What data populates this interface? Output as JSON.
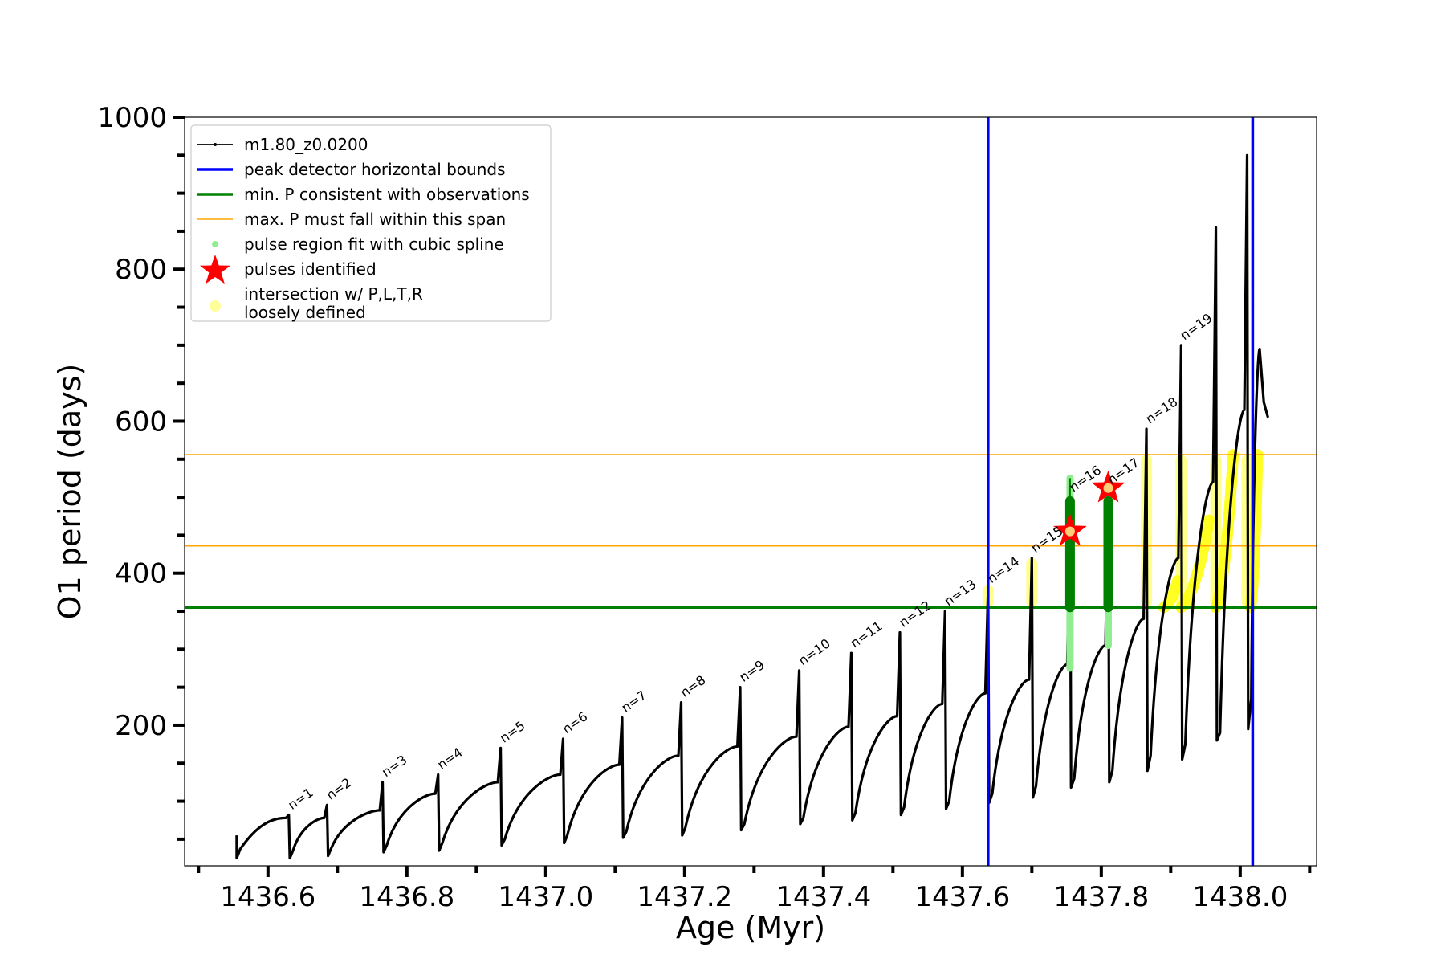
{
  "chart_data": {
    "type": "line",
    "title": "",
    "xlabel": "Age (Myr)",
    "ylabel": "O1 period (days)",
    "xlim": [
      1436.48,
      1438.11
    ],
    "ylim": [
      15,
      1000
    ],
    "x_ticks": [
      1436.6,
      1436.8,
      1437.0,
      1437.2,
      1437.4,
      1437.6,
      1437.8,
      1438.0
    ],
    "x_tick_labels": [
      "1436.6",
      "1436.8",
      "1437.0",
      "1437.2",
      "1437.4",
      "1437.6",
      "1437.8",
      "1438.0"
    ],
    "y_ticks": [
      200,
      400,
      600,
      800,
      1000
    ],
    "y_tick_labels": [
      "200",
      "400",
      "600",
      "800",
      "1000"
    ],
    "grid": false,
    "legend": {
      "position": "top-left",
      "entries": [
        {
          "label": "m1.80_z0.0200",
          "style": "line-marker",
          "color": "#000000"
        },
        {
          "label": "peak detector horizontal bounds",
          "style": "line",
          "color": "#0000ff"
        },
        {
          "label": "min. P consistent with observations",
          "style": "line",
          "color": "#008000"
        },
        {
          "label": "max. P must fall within this span",
          "style": "line",
          "color": "#ffa500"
        },
        {
          "label": "pulse region fit with cubic spline",
          "style": "dot",
          "color": "#90ee90"
        },
        {
          "label": "pulses identified",
          "style": "star",
          "color": "#ff0000"
        },
        {
          "label": "intersection w/ P,L,T,R",
          "label2": "loosely defined",
          "style": "dot",
          "color": "#ffff99"
        }
      ]
    },
    "vertical_lines": [
      {
        "x": 1437.637,
        "color": "#0000ff"
      },
      {
        "x": 1438.018,
        "color": "#0000ff"
      }
    ],
    "horizontal_lines": [
      {
        "y": 355,
        "color": "#008000"
      },
      {
        "y": 436,
        "color": "#ffa500"
      },
      {
        "y": 556,
        "color": "#ffa500"
      }
    ],
    "pulses": [
      {
        "label": "n=1",
        "x": 1436.63,
        "peak": 82,
        "floor": 25,
        "cycle_min": 35,
        "cycle_end": 78
      },
      {
        "label": "n=2",
        "x": 1436.685,
        "peak": 95,
        "floor": 28,
        "cycle_min": 38,
        "cycle_end": 88
      },
      {
        "label": "n=3",
        "x": 1436.765,
        "peak": 125,
        "floor": 33,
        "cycle_min": 42,
        "cycle_end": 110
      },
      {
        "label": "n=4",
        "x": 1436.845,
        "peak": 135,
        "floor": 35,
        "cycle_min": 45,
        "cycle_end": 125
      },
      {
        "label": "n=5",
        "x": 1436.935,
        "peak": 170,
        "floor": 42,
        "cycle_min": 50,
        "cycle_end": 135
      },
      {
        "label": "n=6",
        "x": 1437.025,
        "peak": 182,
        "floor": 45,
        "cycle_min": 55,
        "cycle_end": 148
      },
      {
        "label": "n=7",
        "x": 1437.11,
        "peak": 210,
        "floor": 52,
        "cycle_min": 60,
        "cycle_end": 160
      },
      {
        "label": "n=8",
        "x": 1437.195,
        "peak": 230,
        "floor": 55,
        "cycle_min": 65,
        "cycle_end": 172
      },
      {
        "label": "n=9",
        "x": 1437.28,
        "peak": 250,
        "floor": 62,
        "cycle_min": 70,
        "cycle_end": 185
      },
      {
        "label": "n=10",
        "x": 1437.365,
        "peak": 272,
        "floor": 70,
        "cycle_min": 78,
        "cycle_end": 198
      },
      {
        "label": "n=11",
        "x": 1437.44,
        "peak": 295,
        "floor": 75,
        "cycle_min": 85,
        "cycle_end": 212
      },
      {
        "label": "n=12",
        "x": 1437.51,
        "peak": 322,
        "floor": 82,
        "cycle_min": 92,
        "cycle_end": 228
      },
      {
        "label": "n=13",
        "x": 1437.575,
        "peak": 350,
        "floor": 90,
        "cycle_min": 100,
        "cycle_end": 242
      },
      {
        "label": "n=14",
        "x": 1437.637,
        "peak": 380,
        "floor": 98,
        "cycle_min": 110,
        "cycle_end": 260
      },
      {
        "label": "n=15",
        "x": 1437.7,
        "peak": 420,
        "floor": 105,
        "cycle_min": 120,
        "cycle_end": 280
      },
      {
        "label": "n=16",
        "x": 1437.755,
        "peak": 500,
        "floor": 118,
        "cycle_min": 130,
        "cycle_end": 305
      },
      {
        "label": "n=17",
        "x": 1437.81,
        "peak": 510,
        "floor": 125,
        "cycle_min": 140,
        "cycle_end": 340
      },
      {
        "label": "n=18",
        "x": 1437.865,
        "peak": 590,
        "floor": 140,
        "cycle_min": 160,
        "cycle_end": 420
      },
      {
        "label": "n=19",
        "x": 1437.915,
        "peak": 700,
        "floor": 155,
        "cycle_min": 175,
        "cycle_end": 520
      },
      {
        "label": "",
        "x": 1437.965,
        "peak": 855,
        "floor": 180,
        "cycle_min": 190,
        "cycle_end": 615
      },
      {
        "label": "",
        "x": 1438.01,
        "peak": 950,
        "floor": 195,
        "cycle_min": 235,
        "cycle_end": 695
      }
    ],
    "track_start": {
      "x": 1436.555,
      "y": 25
    },
    "track_end": {
      "x": 1438.04,
      "y": 605
    },
    "pulses_identified": [
      {
        "x": 1437.755,
        "y": 455
      },
      {
        "x": 1437.81,
        "y": 512
      }
    ],
    "spline_fit_regions": [
      {
        "x": 1437.755,
        "y_min": 275,
        "y_max": 525,
        "dense_min": 355,
        "dense_max": 495
      },
      {
        "x": 1437.81,
        "y_min": 305,
        "y_max": 500,
        "dense_min": 355,
        "dense_max": 495
      }
    ],
    "intersection_regions": [
      {
        "x": 1437.637,
        "y_min": 355,
        "y_max": 385
      },
      {
        "x": 1437.7,
        "y_min": 355,
        "y_max": 420
      },
      {
        "x": 1437.865,
        "y_min": 355,
        "y_max": 556
      },
      {
        "x": 1437.915,
        "y_min": 355,
        "y_max": 556
      },
      {
        "x": 1437.965,
        "y_min": 355,
        "y_max": 556
      },
      {
        "x": 1438.01,
        "y_min": 355,
        "y_max": 556
      }
    ],
    "intersection_arcs": [
      {
        "x0": 1437.89,
        "y0": 355,
        "x1": 1437.91,
        "y1": 390
      },
      {
        "x0": 1437.915,
        "y0": 355,
        "x1": 1437.955,
        "y1": 470
      },
      {
        "x0": 1437.965,
        "y0": 355,
        "x1": 1437.99,
        "y1": 556
      },
      {
        "x0": 1438.015,
        "y0": 355,
        "x1": 1438.025,
        "y1": 556
      }
    ]
  }
}
